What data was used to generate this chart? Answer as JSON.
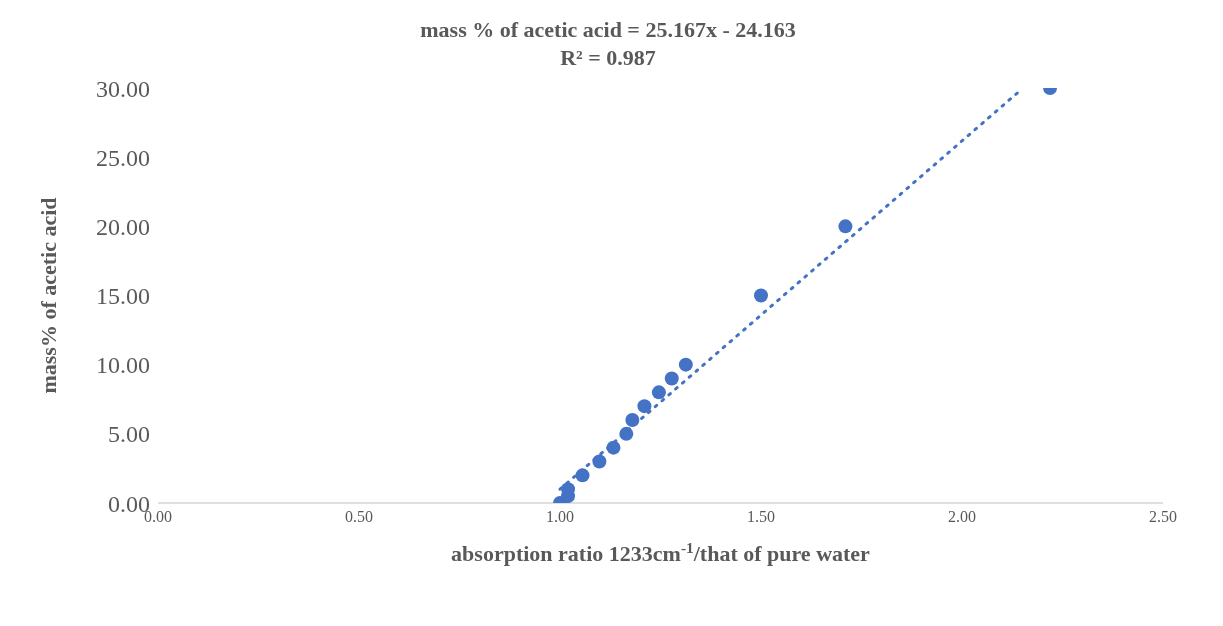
{
  "chart_data": {
    "type": "scatter",
    "xlabel": "absorption ratio 1233cm$^{-1}$/that of pure water",
    "ylabel": "mass% of acetic acid",
    "annotations": [
      "mass % of acetic acid = 25.167x - 24.163",
      "R² = 0.987"
    ],
    "marker": "circle",
    "grid": false,
    "legend": false,
    "xlim": [
      0,
      2.5
    ],
    "ylim": [
      0,
      30
    ],
    "xticks": [
      {
        "value": 0,
        "label": "0.00"
      },
      {
        "value": 0.5,
        "label": "0.50"
      },
      {
        "value": 1,
        "label": "1.00"
      },
      {
        "value": 1.5,
        "label": "1.50"
      },
      {
        "value": 2,
        "label": "2.00"
      },
      {
        "value": 2.5,
        "label": "2.50"
      }
    ],
    "yticks": [
      {
        "value": 0,
        "label": "0.00"
      },
      {
        "value": 5,
        "label": "5.00"
      },
      {
        "value": 10,
        "label": "10.00"
      },
      {
        "value": 15,
        "label": "15.00"
      },
      {
        "value": 20,
        "label": "20.00"
      },
      {
        "value": 25,
        "label": "25.00"
      },
      {
        "value": 30,
        "label": "30.00"
      }
    ],
    "series": [
      {
        "color": "#4472c4",
        "x": [
          1.0,
          1.02,
          1.02,
          1.056,
          1.098,
          1.133,
          1.165,
          1.18,
          1.21,
          1.246,
          1.278,
          1.313,
          1.5,
          1.71,
          2.219
        ],
        "values": [
          0,
          0.5,
          1,
          2,
          3,
          4,
          5,
          6,
          7,
          8,
          9,
          10,
          15,
          20,
          30
        ]
      },
      {
        "type": "line",
        "color": "#4472c4",
        "line_style": "dotted",
        "marker": "none",
        "x": [
          1.0,
          2.15
        ],
        "values": [
          1.0,
          29.95
        ]
      }
    ]
  }
}
